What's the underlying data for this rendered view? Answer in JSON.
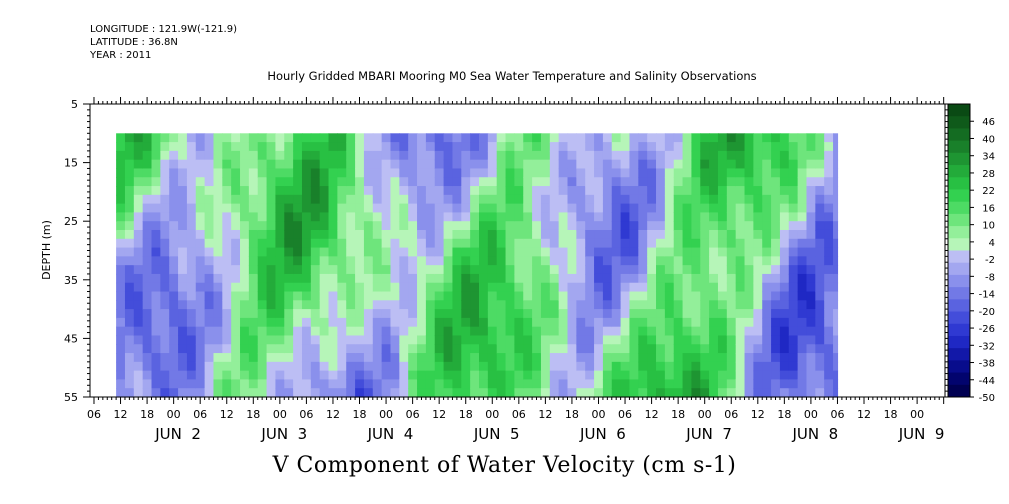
{
  "header": {
    "longitude": "LONGITUDE : 121.9W(-121.9)",
    "latitude": "LATITUDE : 36.8N",
    "year": "YEAR : 2011"
  },
  "chart_data": {
    "type": "heatmap",
    "title": "Hourly Gridded MBARI Mooring M0 Sea Water Temperature and Salinity Observations",
    "xlabel": "V Component of Water Velocity (cm s-1)",
    "ylabel": "DEPTH (m)",
    "ylim": [
      55,
      5
    ],
    "y_ticks": [
      5,
      15,
      25,
      35,
      45,
      55
    ],
    "data_depth_range": [
      10,
      55
    ],
    "x_hour_ticks": [
      "06",
      "12",
      "18",
      "00",
      "06",
      "12",
      "18",
      "00",
      "06",
      "12",
      "18",
      "00",
      "06",
      "12",
      "18",
      "00",
      "06",
      "12",
      "18",
      "00",
      "06",
      "12",
      "18",
      "00",
      "06",
      "12",
      "18",
      "00",
      "06",
      "12",
      "18",
      "00"
    ],
    "x_day_labels": [
      "JUN  2",
      "JUN  3",
      "JUN  4",
      "JUN  5",
      "JUN  6",
      "JUN  7",
      "JUN  8",
      "JUN  9"
    ],
    "data_time_range": [
      "Jun 1 2011 11:00",
      "Jun 8 2011 06:00"
    ],
    "colorbar": {
      "labels": [
        "46",
        "40",
        "34",
        "28",
        "22",
        "16",
        "10",
        "4",
        "-2",
        "-8",
        "-14",
        "-20",
        "-26",
        "-32",
        "-38",
        "-44",
        "-50"
      ],
      "range": [
        -50,
        52
      ],
      "colors": [
        "#0a4a14",
        "#0f5a1a",
        "#146c22",
        "#19802a",
        "#1e9532",
        "#23ab3a",
        "#28c043",
        "#33d150",
        "#4ddb64",
        "#6ee57c",
        "#93ef9a",
        "#b6f5b8",
        "#bcbef4",
        "#a3a7f0",
        "#8a90ec",
        "#7279e6",
        "#5a63e0",
        "#434dda",
        "#2f39d2",
        "#1f28c4",
        "#1218a8",
        "#080c8c",
        "#02046e",
        "#000052"
      ]
    },
    "grid": false,
    "legend": "colorbar-right"
  }
}
